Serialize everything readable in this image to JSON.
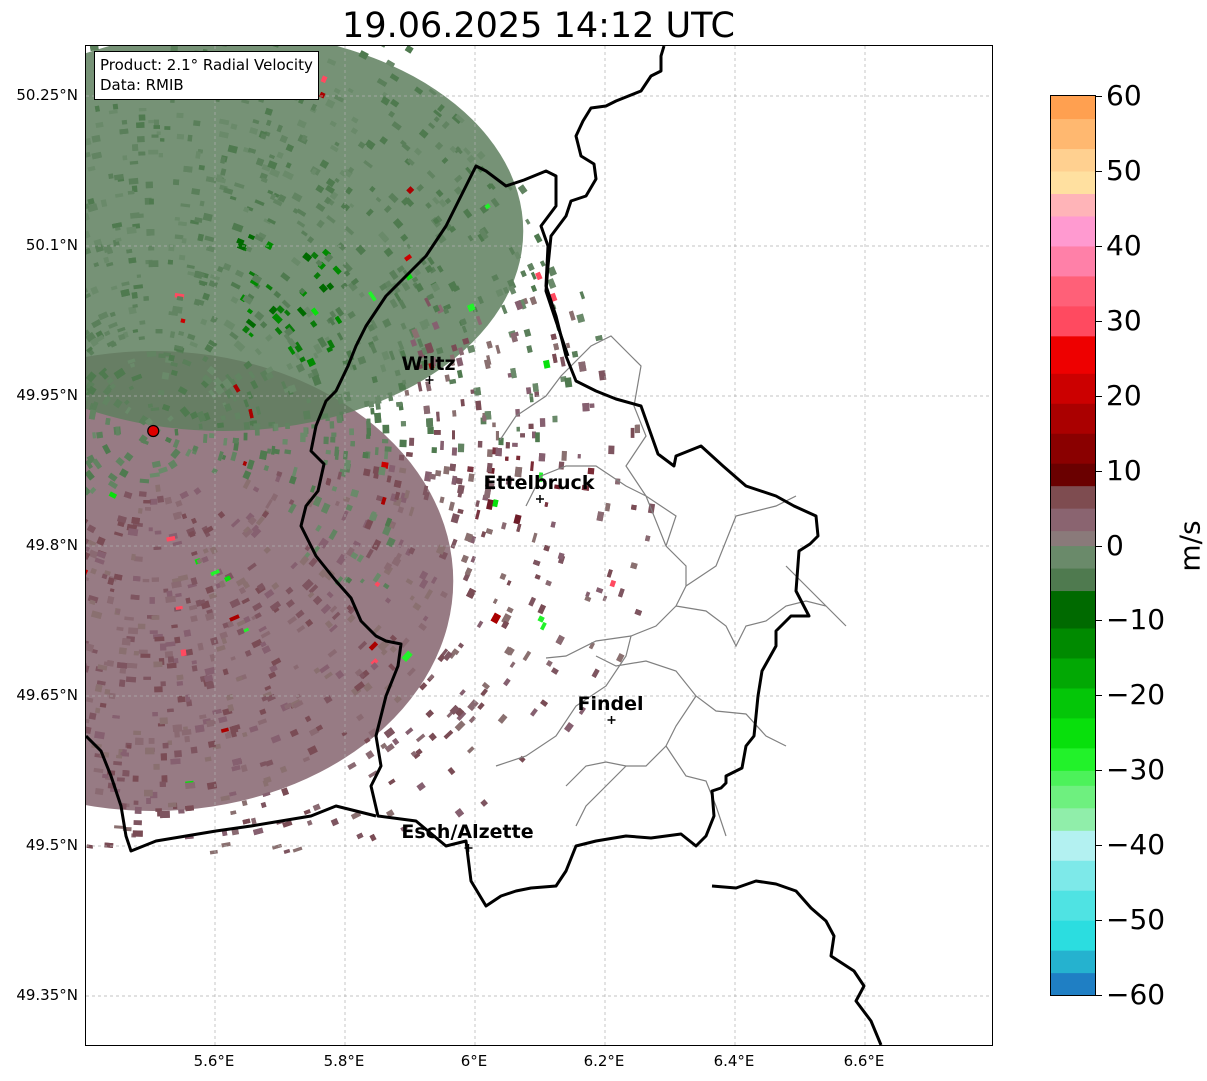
{
  "title": "19.06.2025 14:12 UTC",
  "info": {
    "product": "Product: 2.1° Radial Velocity",
    "data_source": "Data: RMIB"
  },
  "map": {
    "lon_range": [
      5.4,
      6.8
    ],
    "lat_range": [
      49.3,
      50.3
    ],
    "lat_ticks": [
      {
        "value": 50.25,
        "label": "50.25°N"
      },
      {
        "value": 50.1,
        "label": "50.1°N"
      },
      {
        "value": 49.95,
        "label": "49.95°N"
      },
      {
        "value": 49.8,
        "label": "49.8°N"
      },
      {
        "value": 49.65,
        "label": "49.65°N"
      },
      {
        "value": 49.5,
        "label": "49.5°N"
      },
      {
        "value": 49.35,
        "label": "49.35°N"
      }
    ],
    "lon_ticks": [
      {
        "value": 5.6,
        "label": "5.6°E"
      },
      {
        "value": 5.8,
        "label": "5.8°E"
      },
      {
        "value": 6.0,
        "label": "6°E"
      },
      {
        "value": 6.2,
        "label": "6.2°E"
      },
      {
        "value": 6.4,
        "label": "6.4°E"
      },
      {
        "value": 6.6,
        "label": "6.6°E"
      }
    ],
    "radar_site": {
      "lon": 5.505,
      "lat": 49.915,
      "color": "#e00000"
    },
    "cities": [
      {
        "name": "Wiltz",
        "lon": 5.93,
        "lat": 49.966
      },
      {
        "name": "Ettelbruck",
        "lon": 6.1,
        "lat": 49.847
      },
      {
        "name": "Findel",
        "lon": 6.21,
        "lat": 49.626
      },
      {
        "name": "Esch/Alzette",
        "lon": 5.99,
        "lat": 49.498
      }
    ],
    "border_color": "#000000",
    "canton_color": "#808080"
  },
  "colorbar": {
    "label": "m/s",
    "min": -60,
    "max": 60,
    "ticks": [
      {
        "value": 60,
        "label": "60"
      },
      {
        "value": 50,
        "label": "50"
      },
      {
        "value": 40,
        "label": "40"
      },
      {
        "value": 30,
        "label": "30"
      },
      {
        "value": 20,
        "label": "20"
      },
      {
        "value": 10,
        "label": "10"
      },
      {
        "value": 0,
        "label": "0"
      },
      {
        "value": -10,
        "label": "−10"
      },
      {
        "value": -20,
        "label": "−20"
      },
      {
        "value": -30,
        "label": "−30"
      },
      {
        "value": -40,
        "label": "−40"
      },
      {
        "value": -50,
        "label": "−50"
      },
      {
        "value": -60,
        "label": "−60"
      }
    ],
    "stops": [
      {
        "from": -60,
        "to": -57,
        "color": "#1f7fc4"
      },
      {
        "from": -57,
        "to": -54,
        "color": "#25b2cf"
      },
      {
        "from": -54,
        "to": -50,
        "color": "#2bdde0"
      },
      {
        "from": -50,
        "to": -46,
        "color": "#4fe3e3"
      },
      {
        "from": -46,
        "to": -42,
        "color": "#7de9e9"
      },
      {
        "from": -42,
        "to": -38,
        "color": "#b3f1f1"
      },
      {
        "from": -38,
        "to": -35,
        "color": "#90eeaa"
      },
      {
        "from": -35,
        "to": -32,
        "color": "#6ef07f"
      },
      {
        "from": -32,
        "to": -30,
        "color": "#4cf25a"
      },
      {
        "from": -30,
        "to": -27,
        "color": "#22f22a"
      },
      {
        "from": -27,
        "to": -23,
        "color": "#08e00c"
      },
      {
        "from": -23,
        "to": -19,
        "color": "#04c608"
      },
      {
        "from": -19,
        "to": -15,
        "color": "#02a804"
      },
      {
        "from": -15,
        "to": -11,
        "color": "#008a00"
      },
      {
        "from": -11,
        "to": -6,
        "color": "#006a00"
      },
      {
        "from": -6,
        "to": -3,
        "color": "#4f7a4f"
      },
      {
        "from": -3,
        "to": 0,
        "color": "#6a8a6a"
      },
      {
        "from": 0,
        "to": 2,
        "color": "#8a7a7a"
      },
      {
        "from": 2,
        "to": 5,
        "color": "#8a6470"
      },
      {
        "from": 5,
        "to": 8,
        "color": "#7e4c50"
      },
      {
        "from": 8,
        "to": 11,
        "color": "#6a0000"
      },
      {
        "from": 11,
        "to": 15,
        "color": "#8a0000"
      },
      {
        "from": 15,
        "to": 19,
        "color": "#aa0000"
      },
      {
        "from": 19,
        "to": 23,
        "color": "#cc0000"
      },
      {
        "from": 23,
        "to": 28,
        "color": "#ee0000"
      },
      {
        "from": 28,
        "to": 32,
        "color": "#ff4a60"
      },
      {
        "from": 32,
        "to": 36,
        "color": "#ff6078"
      },
      {
        "from": 36,
        "to": 40,
        "color": "#ff80a8"
      },
      {
        "from": 40,
        "to": 44,
        "color": "#ff9ad0"
      },
      {
        "from": 44,
        "to": 47,
        "color": "#ffb4b8"
      },
      {
        "from": 47,
        "to": 50,
        "color": "#ffe0a0"
      },
      {
        "from": 50,
        "to": 53,
        "color": "#ffd090"
      },
      {
        "from": 53,
        "to": 57,
        "color": "#ffb870"
      },
      {
        "from": 57,
        "to": 60,
        "color": "#ffa050"
      }
    ]
  }
}
